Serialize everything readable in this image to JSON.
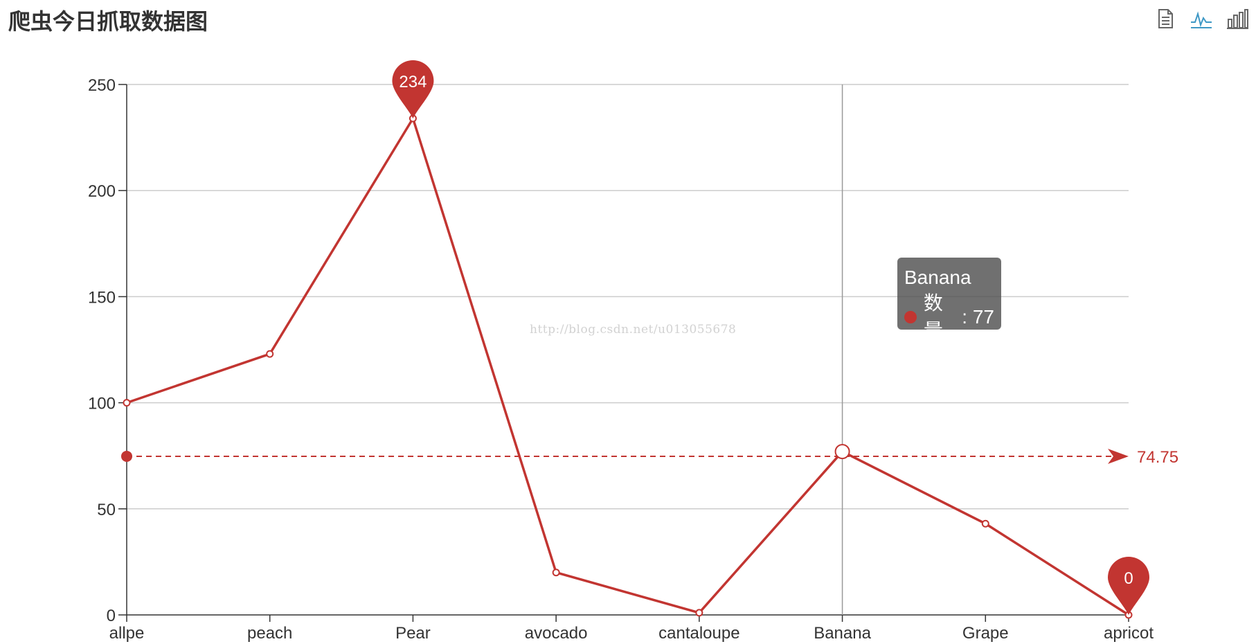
{
  "title": "爬虫今日抓取数据图",
  "toolbox": [
    {
      "name": "data-view",
      "icon": "document-icon"
    },
    {
      "name": "line",
      "icon": "line-chart-icon"
    },
    {
      "name": "bar",
      "icon": "bar-chart-icon"
    }
  ],
  "colors": {
    "series": "#c23531",
    "axis": "#333333",
    "grid": "#cccccc",
    "toolbox": "#666666",
    "toolbox_active": "#3e98c5"
  },
  "watermark": "http://blog.csdn.net/u013055678",
  "tooltip": {
    "category": "Banana",
    "series_name": "数量",
    "value": "77"
  },
  "chart_data": {
    "type": "line",
    "categories": [
      "allpe",
      "peach",
      "Pear",
      "avocado",
      "cantaloupe",
      "Banana",
      "Grape",
      "apricot"
    ],
    "series": [
      {
        "name": "数量",
        "values": [
          100,
          123,
          234,
          20,
          1,
          77,
          43,
          0
        ]
      }
    ],
    "ylim": [
      0,
      250
    ],
    "yticks": [
      0,
      50,
      100,
      150,
      200,
      250
    ],
    "grid": true,
    "mark_points": [
      {
        "category": "Pear",
        "value": 234,
        "label": "234"
      },
      {
        "category": "apricot",
        "value": 0,
        "label": "0"
      }
    ],
    "mark_line": {
      "type": "average",
      "value": 74.75,
      "label": "74.75"
    },
    "axis_pointer": {
      "category": "Banana"
    }
  }
}
